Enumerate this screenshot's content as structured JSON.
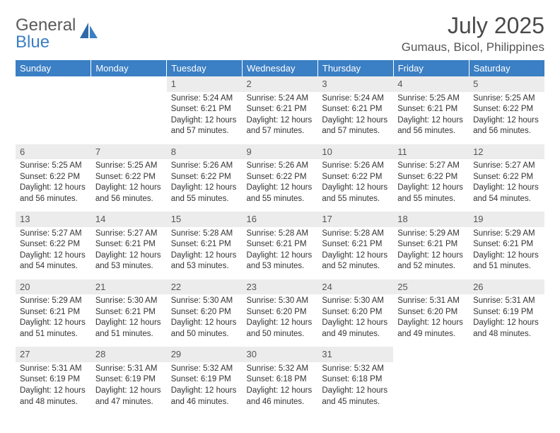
{
  "brand": {
    "line1": "General",
    "line2": "Blue"
  },
  "title": "July 2025",
  "location": "Gumaus, Bicol, Philippines",
  "colors": {
    "header_bg": "#3b7fc4",
    "header_text": "#ffffff",
    "daynum_bg": "#ececec",
    "border": "#3b7fc4",
    "text": "#333333",
    "brand_gray": "#5a5a5a",
    "brand_blue": "#3b7fc4"
  },
  "day_headers": [
    "Sunday",
    "Monday",
    "Tuesday",
    "Wednesday",
    "Thursday",
    "Friday",
    "Saturday"
  ],
  "weeks": [
    [
      null,
      null,
      {
        "n": "1",
        "sr": "5:24 AM",
        "ss": "6:21 PM",
        "dl": "12 hours and 57 minutes."
      },
      {
        "n": "2",
        "sr": "5:24 AM",
        "ss": "6:21 PM",
        "dl": "12 hours and 57 minutes."
      },
      {
        "n": "3",
        "sr": "5:24 AM",
        "ss": "6:21 PM",
        "dl": "12 hours and 57 minutes."
      },
      {
        "n": "4",
        "sr": "5:25 AM",
        "ss": "6:21 PM",
        "dl": "12 hours and 56 minutes."
      },
      {
        "n": "5",
        "sr": "5:25 AM",
        "ss": "6:22 PM",
        "dl": "12 hours and 56 minutes."
      }
    ],
    [
      {
        "n": "6",
        "sr": "5:25 AM",
        "ss": "6:22 PM",
        "dl": "12 hours and 56 minutes."
      },
      {
        "n": "7",
        "sr": "5:25 AM",
        "ss": "6:22 PM",
        "dl": "12 hours and 56 minutes."
      },
      {
        "n": "8",
        "sr": "5:26 AM",
        "ss": "6:22 PM",
        "dl": "12 hours and 55 minutes."
      },
      {
        "n": "9",
        "sr": "5:26 AM",
        "ss": "6:22 PM",
        "dl": "12 hours and 55 minutes."
      },
      {
        "n": "10",
        "sr": "5:26 AM",
        "ss": "6:22 PM",
        "dl": "12 hours and 55 minutes."
      },
      {
        "n": "11",
        "sr": "5:27 AM",
        "ss": "6:22 PM",
        "dl": "12 hours and 55 minutes."
      },
      {
        "n": "12",
        "sr": "5:27 AM",
        "ss": "6:22 PM",
        "dl": "12 hours and 54 minutes."
      }
    ],
    [
      {
        "n": "13",
        "sr": "5:27 AM",
        "ss": "6:22 PM",
        "dl": "12 hours and 54 minutes."
      },
      {
        "n": "14",
        "sr": "5:27 AM",
        "ss": "6:21 PM",
        "dl": "12 hours and 53 minutes."
      },
      {
        "n": "15",
        "sr": "5:28 AM",
        "ss": "6:21 PM",
        "dl": "12 hours and 53 minutes."
      },
      {
        "n": "16",
        "sr": "5:28 AM",
        "ss": "6:21 PM",
        "dl": "12 hours and 53 minutes."
      },
      {
        "n": "17",
        "sr": "5:28 AM",
        "ss": "6:21 PM",
        "dl": "12 hours and 52 minutes."
      },
      {
        "n": "18",
        "sr": "5:29 AM",
        "ss": "6:21 PM",
        "dl": "12 hours and 52 minutes."
      },
      {
        "n": "19",
        "sr": "5:29 AM",
        "ss": "6:21 PM",
        "dl": "12 hours and 51 minutes."
      }
    ],
    [
      {
        "n": "20",
        "sr": "5:29 AM",
        "ss": "6:21 PM",
        "dl": "12 hours and 51 minutes."
      },
      {
        "n": "21",
        "sr": "5:30 AM",
        "ss": "6:21 PM",
        "dl": "12 hours and 51 minutes."
      },
      {
        "n": "22",
        "sr": "5:30 AM",
        "ss": "6:20 PM",
        "dl": "12 hours and 50 minutes."
      },
      {
        "n": "23",
        "sr": "5:30 AM",
        "ss": "6:20 PM",
        "dl": "12 hours and 50 minutes."
      },
      {
        "n": "24",
        "sr": "5:30 AM",
        "ss": "6:20 PM",
        "dl": "12 hours and 49 minutes."
      },
      {
        "n": "25",
        "sr": "5:31 AM",
        "ss": "6:20 PM",
        "dl": "12 hours and 49 minutes."
      },
      {
        "n": "26",
        "sr": "5:31 AM",
        "ss": "6:19 PM",
        "dl": "12 hours and 48 minutes."
      }
    ],
    [
      {
        "n": "27",
        "sr": "5:31 AM",
        "ss": "6:19 PM",
        "dl": "12 hours and 48 minutes."
      },
      {
        "n": "28",
        "sr": "5:31 AM",
        "ss": "6:19 PM",
        "dl": "12 hours and 47 minutes."
      },
      {
        "n": "29",
        "sr": "5:32 AM",
        "ss": "6:19 PM",
        "dl": "12 hours and 46 minutes."
      },
      {
        "n": "30",
        "sr": "5:32 AM",
        "ss": "6:18 PM",
        "dl": "12 hours and 46 minutes."
      },
      {
        "n": "31",
        "sr": "5:32 AM",
        "ss": "6:18 PM",
        "dl": "12 hours and 45 minutes."
      },
      null,
      null
    ]
  ],
  "labels": {
    "sunrise": "Sunrise: ",
    "sunset": "Sunset: ",
    "daylight": "Daylight: "
  }
}
